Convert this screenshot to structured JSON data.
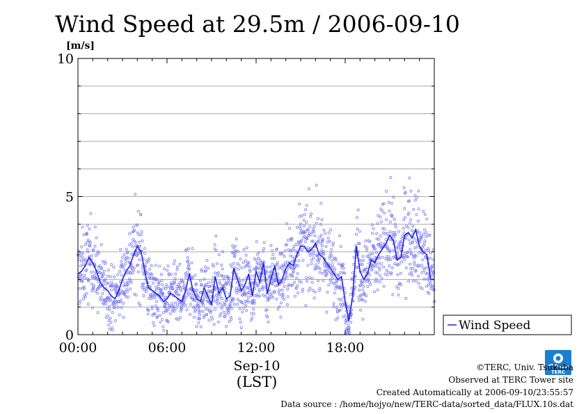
{
  "chart_data": {
    "type": "line",
    "title": "Wind Speed at 29.5m / 2006-09-10",
    "ylabel": "[m/s]",
    "ylim": [
      0,
      10
    ],
    "y_ticks": [
      "0",
      "5",
      "10"
    ],
    "xlim": [
      0,
      24
    ],
    "x_ticks": [
      "00:00",
      "06:00",
      "12:00",
      "18:00"
    ],
    "x_date_label": "Sep-10",
    "x_axis_label": "(LST)",
    "grid": true,
    "legend_position": "right",
    "series": [
      {
        "name": "Wind Speed",
        "color": "#2222dd",
        "scatter_color": "#7f7ff0",
        "x": [
          0,
          0.25,
          0.5,
          0.75,
          1,
          1.25,
          1.5,
          1.75,
          2,
          2.25,
          2.5,
          2.75,
          3,
          3.25,
          3.5,
          3.75,
          4,
          4.25,
          4.5,
          4.75,
          5,
          5.25,
          5.5,
          5.75,
          6,
          6.25,
          6.5,
          6.75,
          7,
          7.25,
          7.5,
          7.75,
          8,
          8.25,
          8.5,
          8.75,
          9,
          9.25,
          9.5,
          9.75,
          10,
          10.25,
          10.5,
          10.75,
          11,
          11.25,
          11.5,
          11.75,
          12,
          12.25,
          12.5,
          12.75,
          13,
          13.25,
          13.5,
          13.75,
          14,
          14.25,
          14.5,
          14.75,
          15,
          15.25,
          15.5,
          15.75,
          16,
          16.25,
          16.5,
          16.75,
          17,
          17.25,
          17.5,
          17.75,
          18,
          18.25,
          18.5,
          18.75,
          19,
          19.25,
          19.5,
          19.75,
          20,
          20.25,
          20.5,
          20.75,
          21,
          21.25,
          21.5,
          21.75,
          22,
          22.25,
          22.5,
          22.75,
          23,
          23.25,
          23.5,
          23.75
        ],
        "values": [
          2.2,
          2.3,
          2.5,
          2.8,
          2.6,
          2.3,
          1.9,
          1.7,
          1.6,
          1.4,
          1.3,
          1.6,
          2.0,
          2.3,
          2.5,
          2.9,
          3.2,
          3.0,
          2.3,
          1.7,
          1.6,
          1.5,
          1.4,
          1.2,
          1.3,
          1.5,
          1.4,
          1.3,
          1.2,
          1.6,
          2.2,
          1.6,
          1.3,
          1.2,
          1.7,
          1.4,
          1.1,
          2.1,
          1.5,
          1.7,
          1.3,
          1.4,
          2.4,
          2.0,
          1.6,
          1.8,
          2.2,
          1.4,
          2.3,
          1.9,
          2.6,
          1.5,
          2.0,
          2.5,
          1.8,
          2.0,
          2.4,
          2.6,
          2.5,
          2.9,
          3.2,
          3.2,
          3.0,
          3.1,
          3.3,
          2.9,
          2.8,
          2.6,
          2.4,
          2.2,
          2.0,
          2.1,
          1.2,
          0.5,
          1.4,
          3.2,
          2.3,
          2.0,
          2.2,
          2.7,
          2.6,
          2.9,
          3.1,
          3.3,
          3.6,
          3.4,
          2.7,
          2.8,
          3.6,
          3.7,
          3.5,
          3.8,
          3.2,
          3.0,
          2.9,
          2.0
        ]
      }
    ]
  },
  "legend": {
    "label": "Wind Speed"
  },
  "credits": {
    "copyright": "©TERC, Univ. Tsukuba",
    "observed": "Observed at TERC Tower site",
    "created": "Created Automatically at 2006-09-10/23:55:57",
    "source": "Data source : /home/hojyo/new/TERC-data/sorted_data/FLUX.10s.dat"
  },
  "logo": {
    "text": "TERC",
    "color": "#1a7fd0"
  }
}
